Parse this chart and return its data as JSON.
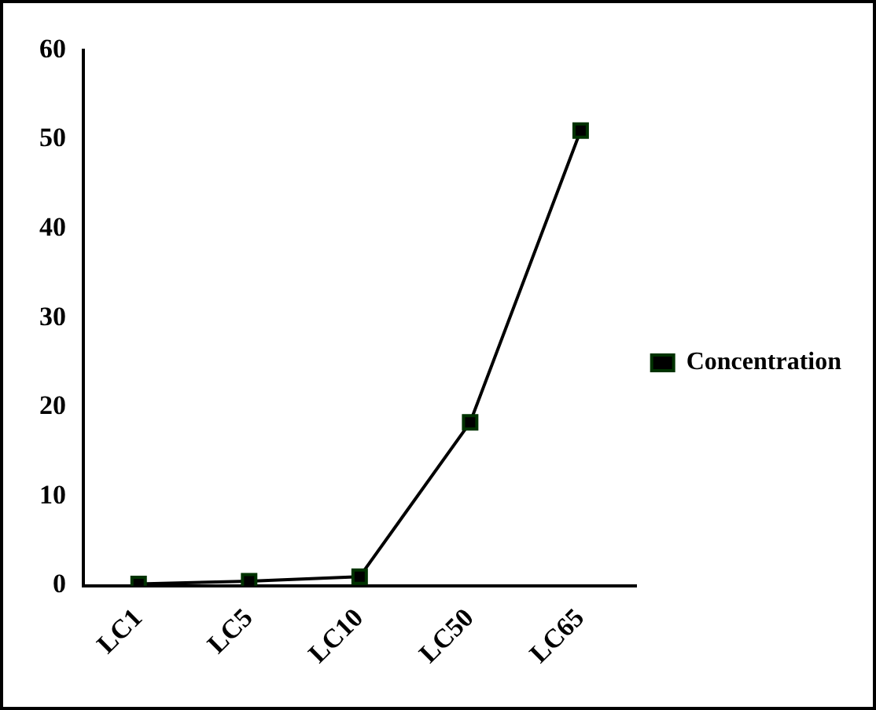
{
  "chart_data": {
    "type": "line",
    "categories": [
      "LC1",
      "LC5",
      "LC10",
      "LC50",
      "LC65"
    ],
    "series": [
      {
        "name": "Concentration",
        "color": "#000000",
        "values": [
          0.2,
          0.5,
          1,
          18.3,
          51
        ]
      }
    ],
    "ylim": [
      0,
      60
    ],
    "yticks": [
      0,
      10,
      20,
      30,
      40,
      50,
      60
    ],
    "grid": false,
    "legend": "right",
    "marker": "square",
    "line_style": "solid"
  }
}
